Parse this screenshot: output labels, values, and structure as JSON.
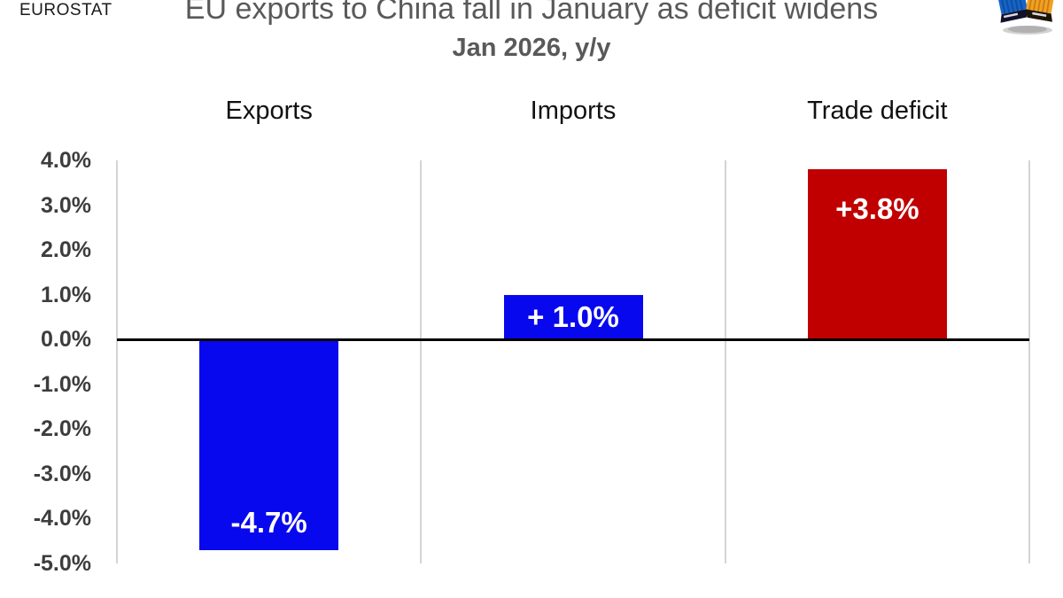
{
  "branding": {
    "source_label": "EUROSTAT",
    "corner_icon": "shipping-containers-icon"
  },
  "colors": {
    "bar_blue": "#0808ee",
    "bar_red": "#c00000",
    "title_gray": "#595959",
    "tick_gray": "#3d3d3d",
    "gridline_gray": "#d4d4d4",
    "zero_line_black": "#000000",
    "bar_label_white": "#ffffff"
  },
  "chart_data": {
    "type": "bar",
    "title": "EU exports to China fall in January as deficit widens",
    "subtitle": "Jan 2026, y/y",
    "categories": [
      "Exports",
      "Imports",
      "Trade deficit"
    ],
    "values": [
      -4.7,
      1.0,
      3.8
    ],
    "bar_labels": [
      "-4.7%",
      "+ 1.0%",
      "+3.8%"
    ],
    "bar_colors": [
      "#0808ee",
      "#0808ee",
      "#c00000"
    ],
    "bar_label_positions": [
      "bottom",
      "center",
      "top"
    ],
    "xlabel": "",
    "ylabel": "",
    "ylim": [
      -5,
      4
    ],
    "yticks": [
      4,
      3,
      2,
      1,
      0,
      -1,
      -2,
      -3,
      -4,
      -5
    ],
    "ytick_labels": [
      "4.0%",
      "3.0%",
      "2.0%",
      "1.0%",
      "0.0%",
      "-1.0%",
      "-2.0%",
      "-3.0%",
      "-4.0%",
      "-5.0%"
    ],
    "grid": "vertical panel separators only",
    "zero_line": true,
    "legend": "none"
  }
}
